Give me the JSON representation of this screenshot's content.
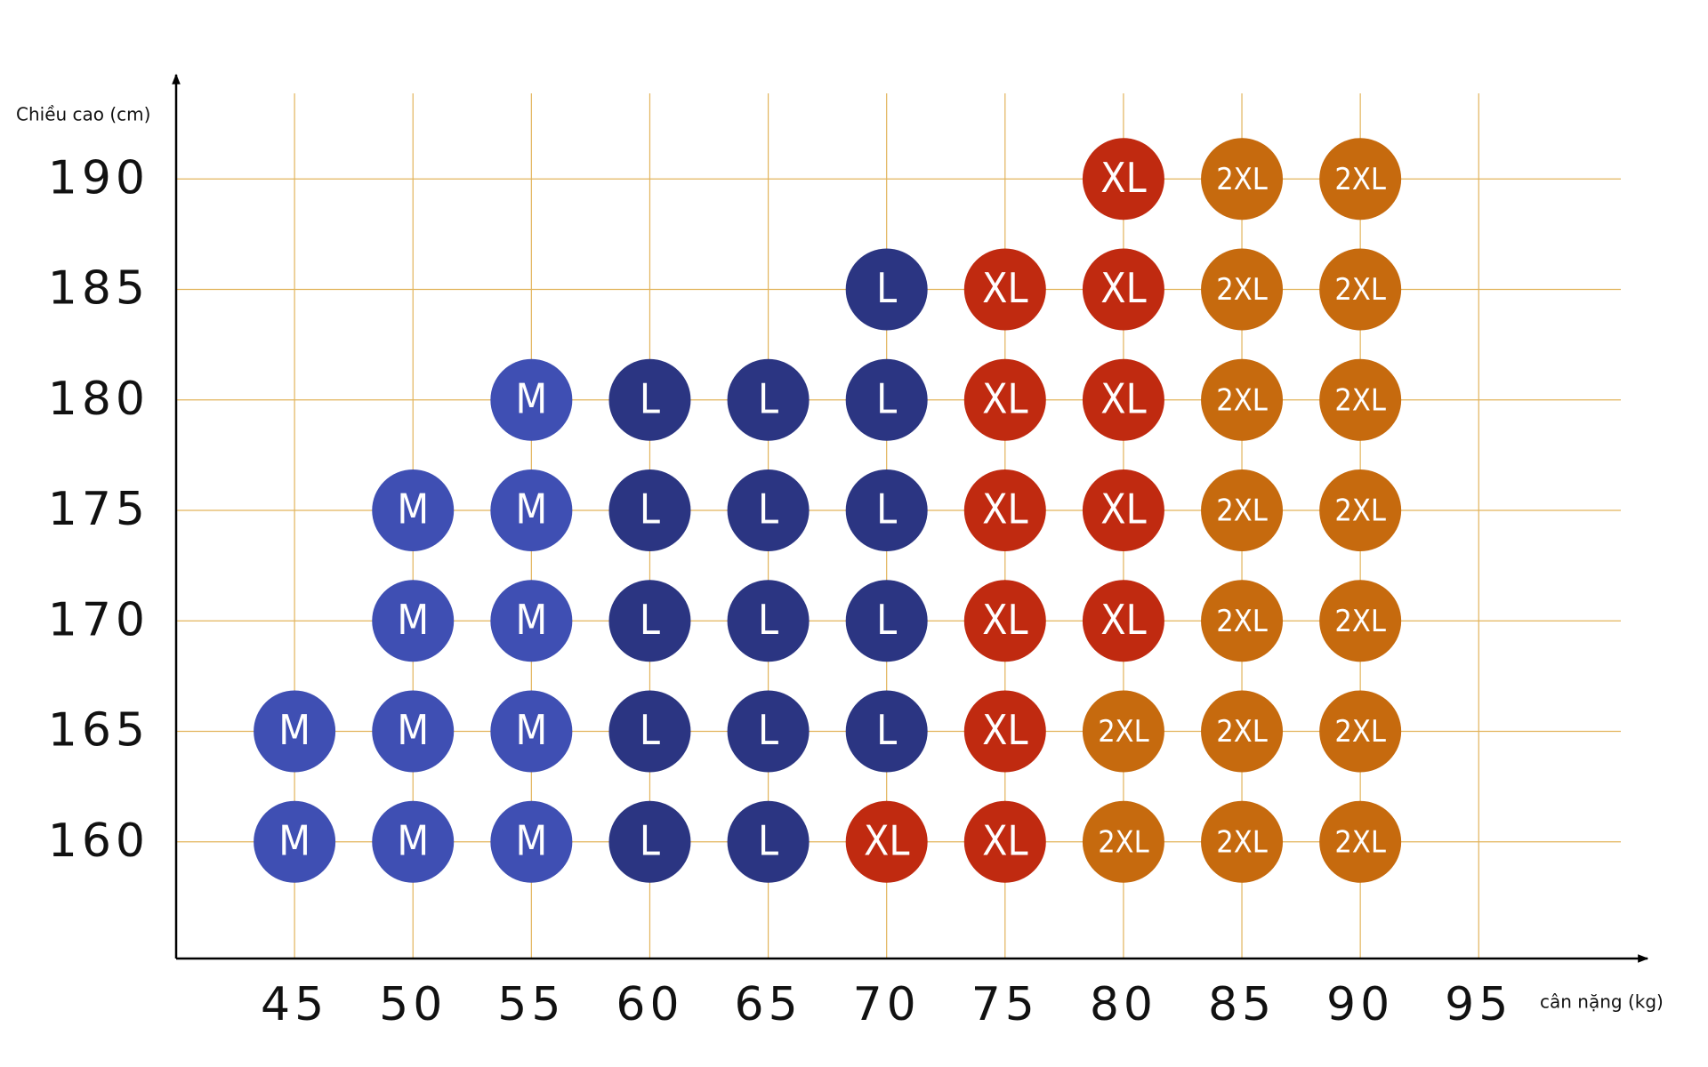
{
  "chart_data": {
    "type": "scatter",
    "y_label": "Chiều cao (cm)",
    "x_label": "cân nặng (kg)",
    "xlim": [
      40,
      101
    ],
    "ylim": [
      155,
      195
    ],
    "xticks": [
      45,
      50,
      55,
      60,
      65,
      70,
      75,
      80,
      85,
      90,
      95
    ],
    "yticks": [
      160,
      165,
      170,
      175,
      180,
      185,
      190
    ],
    "grid": true,
    "grid_color": "#e2b45c",
    "series": [
      {
        "name": "M",
        "color": "#3f4fb3",
        "x": [
          45,
          45,
          50,
          50,
          50,
          50,
          55,
          55,
          55,
          55,
          55
        ],
        "values": [
          165,
          160,
          175,
          170,
          165,
          160,
          180,
          175,
          170,
          165,
          160
        ]
      },
      {
        "name": "L",
        "color": "#2b3582",
        "x": [
          60,
          60,
          60,
          60,
          60,
          65,
          65,
          65,
          65,
          65,
          70,
          70,
          70,
          70,
          70
        ],
        "values": [
          180,
          175,
          170,
          165,
          160,
          180,
          175,
          170,
          165,
          160,
          185,
          180,
          175,
          170,
          165
        ]
      },
      {
        "name": "XL",
        "color": "#c02a10",
        "x": [
          70,
          75,
          75,
          75,
          75,
          75,
          75,
          80,
          80,
          80,
          80,
          80
        ],
        "values": [
          160,
          185,
          180,
          175,
          170,
          165,
          160,
          190,
          185,
          180,
          175,
          170
        ]
      },
      {
        "name": "2XL",
        "color": "#c66a0e",
        "x": [
          80,
          80,
          85,
          85,
          85,
          85,
          85,
          85,
          85,
          90,
          90,
          90,
          90,
          90,
          90,
          90
        ],
        "values": [
          165,
          160,
          190,
          185,
          180,
          175,
          170,
          165,
          160,
          190,
          185,
          180,
          175,
          170,
          165,
          160
        ]
      }
    ]
  }
}
